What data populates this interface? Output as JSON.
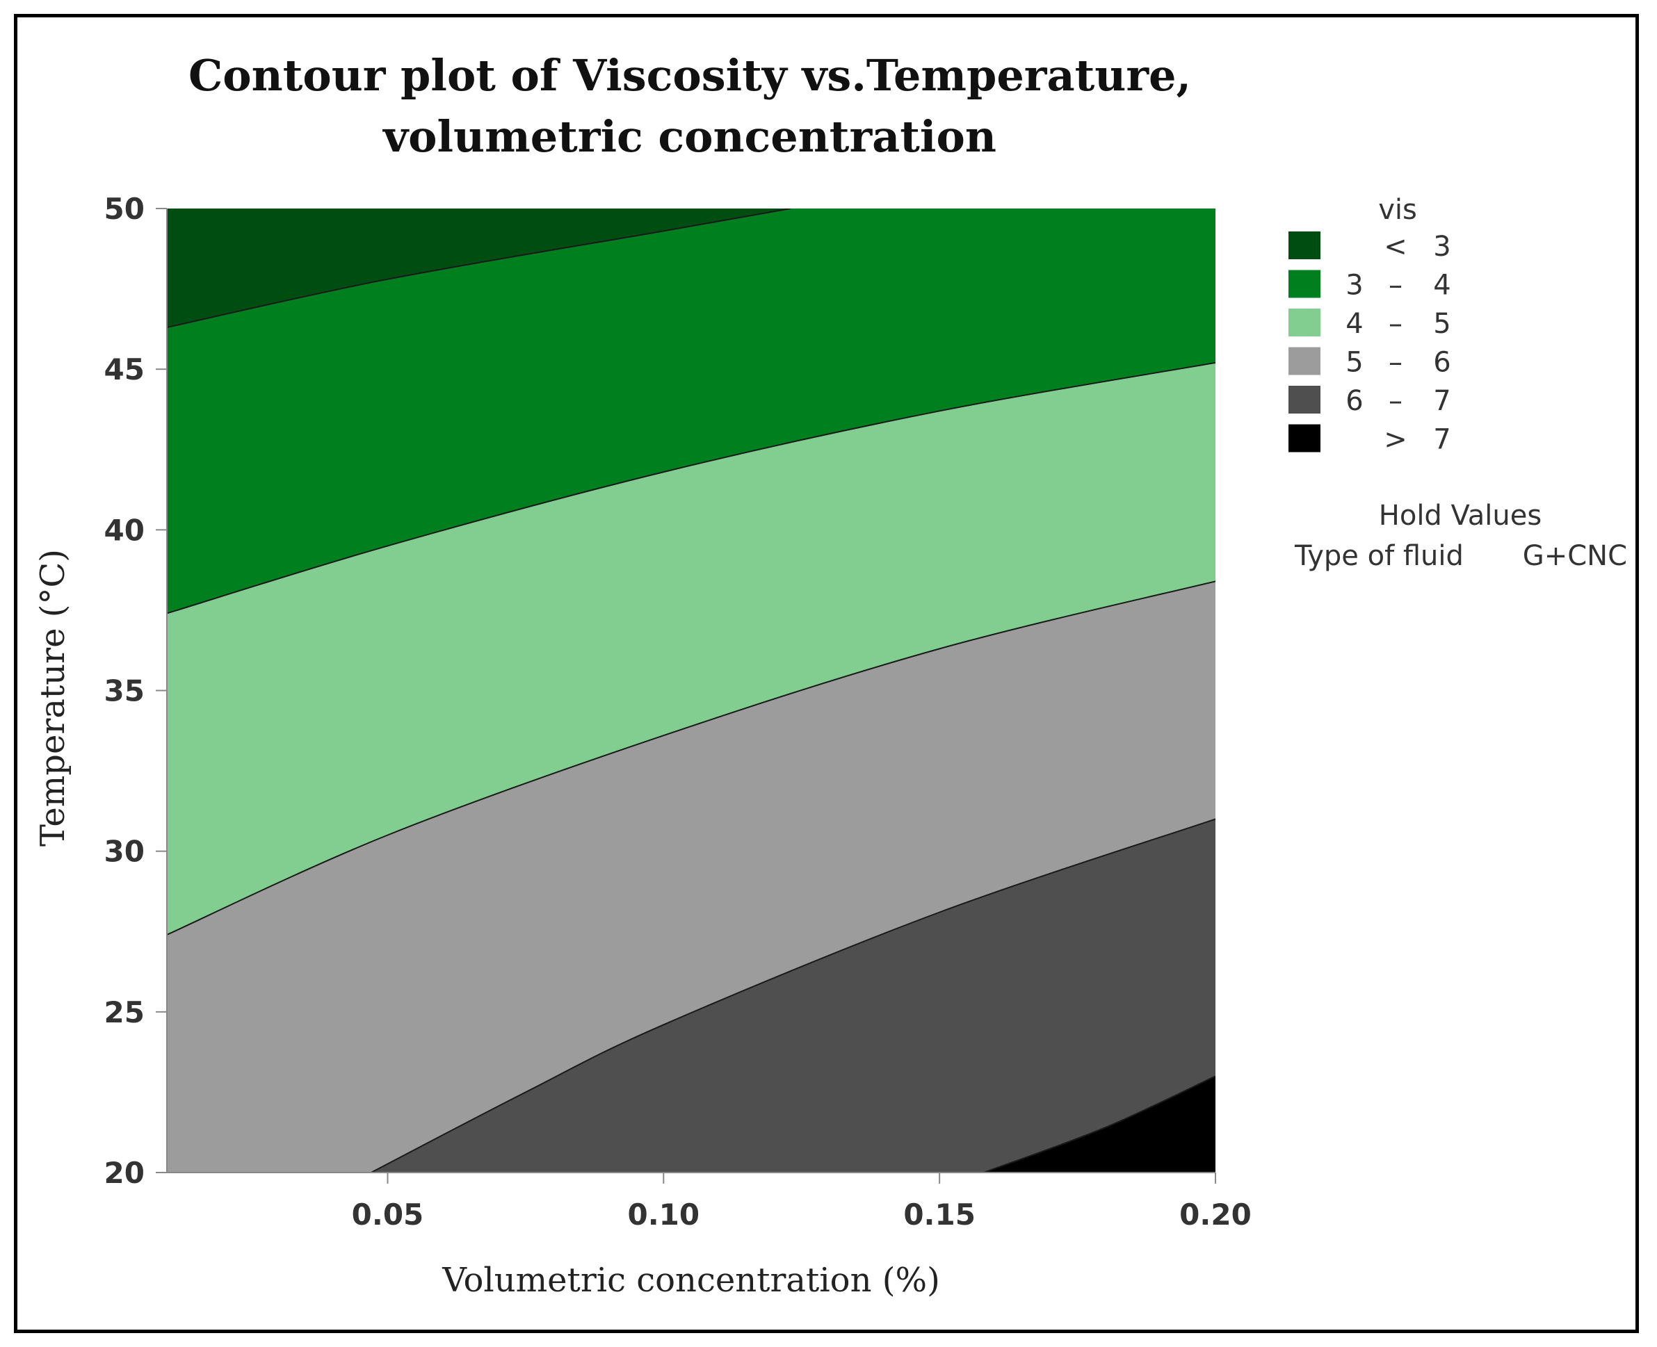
{
  "chart_data": {
    "type": "contour",
    "title_lines": [
      "Contour plot of Viscosity vs.Temperature,",
      "volumetric concentration"
    ],
    "xlabel": "Volumetric concentration (%)",
    "ylabel": "Temperature (°C)",
    "xlim": [
      0.01,
      0.2
    ],
    "ylim": [
      20,
      50
    ],
    "xticks": [
      0.05,
      0.1,
      0.15,
      0.2
    ],
    "xtick_labels": [
      "0.05",
      "0.10",
      "0.15",
      "0.20"
    ],
    "yticks": [
      20,
      25,
      30,
      35,
      40,
      45,
      50
    ],
    "ytick_labels": [
      "20",
      "25",
      "30",
      "35",
      "40",
      "45",
      "50"
    ],
    "legend_title": "vis",
    "legend": [
      {
        "low": "",
        "sep": "<",
        "high": "3",
        "color": "#004d12"
      },
      {
        "low": "3",
        "sep": "–",
        "high": "4",
        "color": "#007f1f"
      },
      {
        "low": "4",
        "sep": "–",
        "high": "5",
        "color": "#82ce91"
      },
      {
        "low": "5",
        "sep": "–",
        "high": "6",
        "color": "#9c9c9c"
      },
      {
        "low": "6",
        "sep": "–",
        "high": "7",
        "color": "#4f4f4f"
      },
      {
        "low": "",
        "sep": ">",
        "high": "7",
        "color": "#000000"
      }
    ],
    "hold_values": {
      "title": "Hold Values",
      "label": "Type of fluid",
      "value": "G+CNC"
    },
    "contours": [
      {
        "level": 3,
        "points": [
          [
            0.01,
            46.3
          ],
          [
            0.05,
            47.8
          ],
          [
            0.1,
            49.3
          ],
          [
            0.123,
            50.0
          ]
        ]
      },
      {
        "level": 4,
        "points": [
          [
            0.01,
            37.4
          ],
          [
            0.05,
            39.5
          ],
          [
            0.1,
            41.8
          ],
          [
            0.15,
            43.7
          ],
          [
            0.2,
            45.2
          ]
        ]
      },
      {
        "level": 5,
        "points": [
          [
            0.01,
            27.4
          ],
          [
            0.05,
            30.5
          ],
          [
            0.1,
            33.6
          ],
          [
            0.15,
            36.3
          ],
          [
            0.2,
            38.4
          ]
        ]
      },
      {
        "level": 6,
        "points": [
          [
            0.047,
            20.0
          ],
          [
            0.075,
            22.5
          ],
          [
            0.1,
            24.6
          ],
          [
            0.15,
            28.1
          ],
          [
            0.2,
            31.0
          ]
        ]
      },
      {
        "level": 7,
        "points": [
          [
            0.158,
            20.0
          ],
          [
            0.18,
            21.4
          ],
          [
            0.2,
            23.0
          ]
        ]
      }
    ]
  }
}
